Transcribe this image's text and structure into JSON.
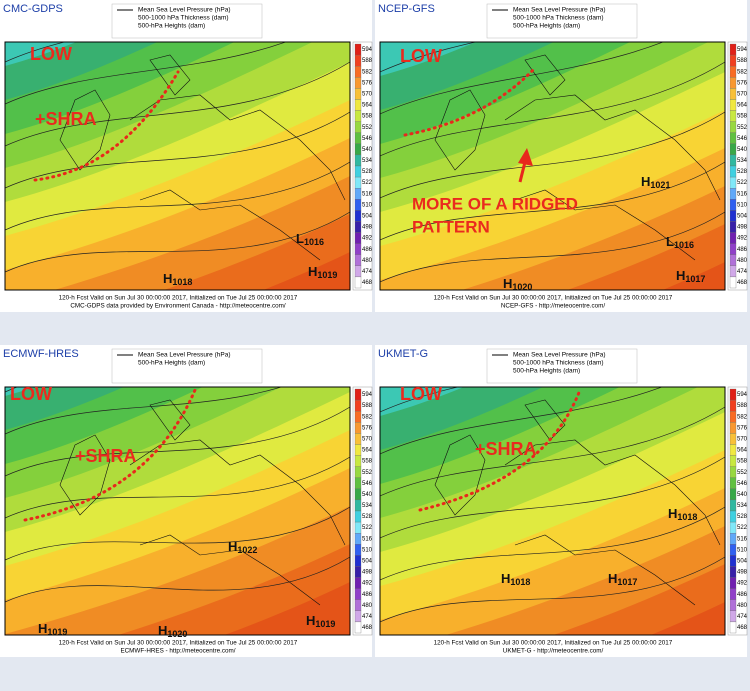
{
  "colorbar": {
    "labels": [
      594,
      588,
      582,
      576,
      570,
      564,
      558,
      552,
      546,
      540,
      534,
      528,
      522,
      516,
      510,
      504,
      498,
      492,
      486,
      480,
      474,
      468
    ],
    "colors": [
      "#e02018",
      "#f04020",
      "#f86c24",
      "#f89830",
      "#f8c038",
      "#f0e840",
      "#c8e840",
      "#98d840",
      "#60c040",
      "#38a848",
      "#30b8a0",
      "#40d0e0",
      "#80e8f8",
      "#60a8f8",
      "#3060f0",
      "#2030d0",
      "#3820a8",
      "#7020b0",
      "#9040c8",
      "#b070d8",
      "#d0a8e8",
      "#ffffff"
    ]
  },
  "panels": [
    {
      "title": "CMC-GDPS",
      "legend": [
        "Mean Sea Level Pressure (hPa)",
        "500-1000 hPa Thickness (dam)",
        "500-hPa Heights (dam)"
      ],
      "labels": [
        "LOW",
        "+SHRA"
      ],
      "centers": [
        {
          "letter": "L",
          "value": 1016
        },
        {
          "letter": "H",
          "value": 1018
        },
        {
          "letter": "H",
          "value": 1019
        }
      ],
      "footer": [
        "120-h Fcst Valid on Sun Jul 30 00:00:00 2017, Initialized on Tue Jul 25 00:00:00 2017",
        "CMC-GDPS data provided by Environment Canada - http://meteocentre.com/"
      ]
    },
    {
      "title": "NCEP-GFS",
      "legend": [
        "Mean Sea Level Pressure (hPa)",
        "500-1000 hPa Thickness (dam)",
        "500-hPa Heights (dam)"
      ],
      "labels": [
        "LOW",
        "MORE OF A RIDGED",
        "PATTERN"
      ],
      "centers": [
        {
          "letter": "H",
          "value": 1021
        },
        {
          "letter": "L",
          "value": 1016
        },
        {
          "letter": "H",
          "value": 1020
        },
        {
          "letter": "H",
          "value": 1017
        }
      ],
      "footer": [
        "120-h Fcst Valid on Sun Jul 30 00:00:00 2017, Initialized on Tue Jul 25 00:00:00 2017",
        "NCEP-GFS - http://meteocentre.com/"
      ]
    },
    {
      "title": "ECMWF-HRES",
      "legend": [
        "Mean Sea Level Pressure (hPa)",
        "500-hPa Heights (dam)"
      ],
      "labels": [
        "LOW",
        "+SHRA"
      ],
      "centers": [
        {
          "letter": "H",
          "value": 1022
        },
        {
          "letter": "H",
          "value": 1019
        },
        {
          "letter": "H",
          "value": 1020
        },
        {
          "letter": "H",
          "value": 1019
        }
      ],
      "footer": [
        "120-h Fcst Valid on Sun Jul 30 00:00:00 2017, Initialized on Tue Jul 25 00:00:00 2017",
        "ECMWF-HRES - http://meteocentre.com/"
      ]
    },
    {
      "title": "UKMET-G",
      "legend": [
        "Mean Sea Level Pressure (hPa)",
        "500-1000 hPa Thickness (dam)",
        "500-hPa Heights (dam)"
      ],
      "labels": [
        "LOW",
        "+SHRA"
      ],
      "centers": [
        {
          "letter": "H",
          "value": 1018
        },
        {
          "letter": "H",
          "value": 1018
        },
        {
          "letter": "H",
          "value": 1017
        }
      ],
      "footer": [
        "120-h Fcst Valid on Sun Jul 30 00:00:00 2017, Initialized on Tue Jul 25 00:00:00 2017",
        "UKMET-G - http://meteocentre.com/"
      ]
    }
  ]
}
